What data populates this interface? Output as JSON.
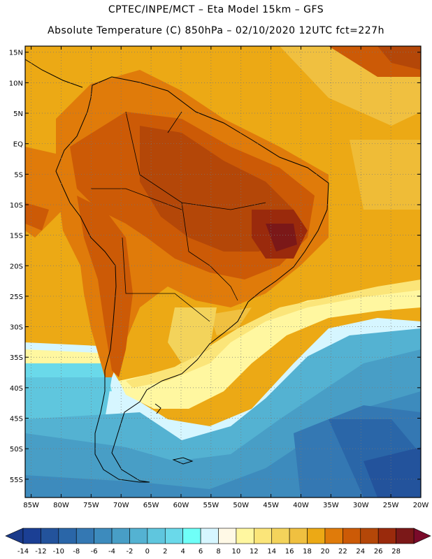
{
  "header": {
    "line1": "CPTEC/INPE/MCT –  Eta Model 15km – GFS",
    "line2": "Absolute Temperature (C) 850hPa – 02/10/2020 12UTC fct=227h"
  },
  "map": {
    "region": "South America",
    "variable": "temperature_850hPa",
    "lon_range": [
      -86,
      -20
    ],
    "lat_range": [
      -58,
      16
    ],
    "lat_labels": [
      "15N",
      "10N",
      "5N",
      "EQ",
      "5S",
      "10S",
      "15S",
      "20S",
      "25S",
      "30S",
      "35S",
      "40S",
      "45S",
      "50S",
      "55S"
    ],
    "lat_values": [
      15,
      10,
      5,
      0,
      -5,
      -10,
      -15,
      -20,
      -25,
      -30,
      -35,
      -40,
      -45,
      -50,
      -55
    ],
    "lon_labels": [
      "85W",
      "80W",
      "75W",
      "70W",
      "65W",
      "60W",
      "55W",
      "50W",
      "45W",
      "40W",
      "35W",
      "30W",
      "25W",
      "20W"
    ],
    "lon_values": [
      -85,
      -80,
      -75,
      -70,
      -65,
      -60,
      -55,
      -50,
      -45,
      -40,
      -35,
      -30,
      -25,
      -20
    ]
  },
  "colorbar": {
    "labels": [
      "-14",
      "-12",
      "-10",
      "-8",
      "-6",
      "-4",
      "-2",
      "0",
      "2",
      "4",
      "6",
      "8",
      "10",
      "12",
      "14",
      "16",
      "18",
      "20",
      "22",
      "24",
      "26",
      "28"
    ],
    "colors": [
      "#1b3f94",
      "#23539c",
      "#2a66a8",
      "#3478b3",
      "#3d8bbd",
      "#489ec6",
      "#54b2d2",
      "#5fc6de",
      "#6ad9ea",
      "#6ffff8",
      "#d6f6ff",
      "#fff9e6",
      "#fff7a0",
      "#fbe579",
      "#f3d35b",
      "#f0c040",
      "#eca915",
      "#e07b0a",
      "#cc5a06",
      "#b44708",
      "#9a2a0c",
      "#7b1818"
    ],
    "end_low_color": "#1a3a8a",
    "end_high_color": "#7a0a2a"
  }
}
